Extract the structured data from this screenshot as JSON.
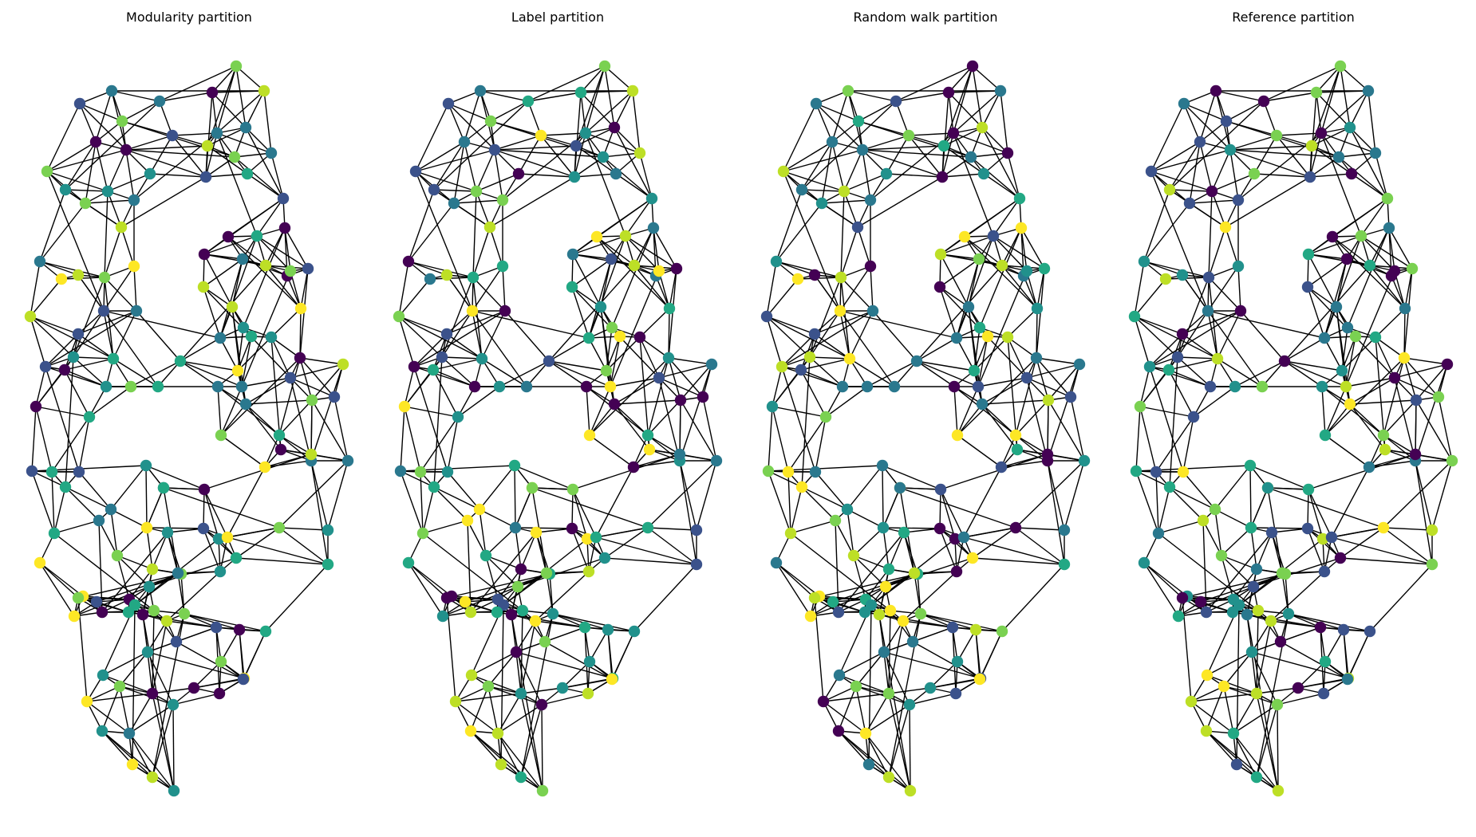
{
  "figure": {
    "panels": [
      {
        "title": "Modularity partition"
      },
      {
        "title": "Label partition"
      },
      {
        "title": "Random walk partition"
      },
      {
        "title": "Reference partition"
      }
    ]
  },
  "style": {
    "edge_color": "#000000",
    "palette": [
      "#440154",
      "#3b528b",
      "#2a788e",
      "#21918c",
      "#22a884",
      "#7ad151",
      "#bddf26",
      "#fde725"
    ]
  }
}
